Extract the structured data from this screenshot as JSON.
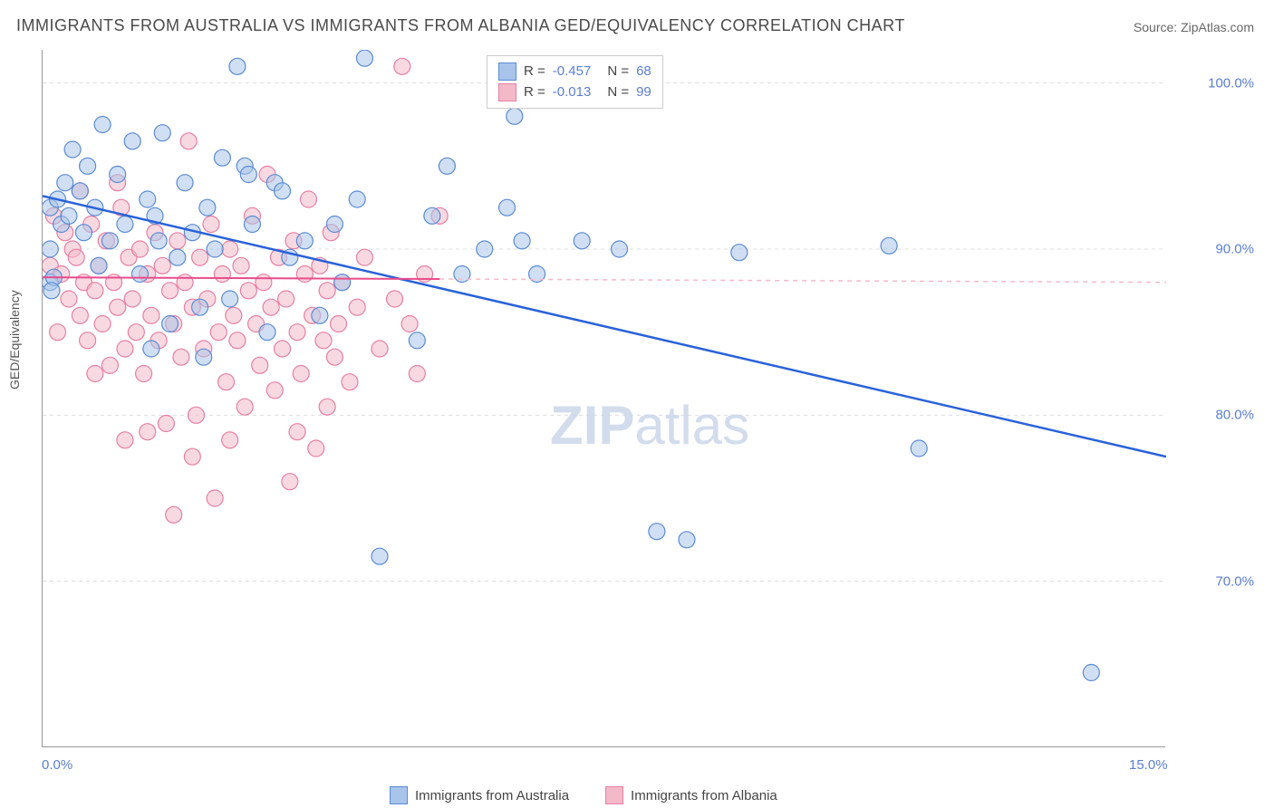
{
  "title": "IMMIGRANTS FROM AUSTRALIA VS IMMIGRANTS FROM ALBANIA GED/EQUIVALENCY CORRELATION CHART",
  "source_prefix": "Source: ",
  "source": "ZipAtlas.com",
  "ylabel": "GED/Equivalency",
  "watermark_bold": "ZIP",
  "watermark_light": "atlas",
  "chart": {
    "type": "scatter",
    "xlim": [
      0,
      15
    ],
    "ylim": [
      60,
      102
    ],
    "x_ticks": [
      0,
      2,
      4,
      6,
      8,
      10,
      12,
      14
    ],
    "x_tick_labels": {
      "0": "0.0%",
      "15": "15.0%"
    },
    "y_ticks": [
      70,
      80,
      90,
      100
    ],
    "y_tick_labels": [
      "70.0%",
      "80.0%",
      "90.0%",
      "100.0%"
    ],
    "grid_color": "#dddddd",
    "background_color": "#ffffff",
    "marker_radius": 9,
    "marker_opacity": 0.55,
    "series": [
      {
        "name": "Immigrants from Australia",
        "fill": "#a9c4ea",
        "stroke": "#5b8bd4",
        "R": "-0.457",
        "N": "68",
        "regression": {
          "x1": 0,
          "y1": 93.2,
          "x2": 15,
          "y2": 77.5,
          "color": "#2962d9",
          "width": 2.5,
          "dash_after_x": 15
        },
        "points": [
          [
            0.1,
            92.5
          ],
          [
            0.1,
            88.0
          ],
          [
            0.15,
            88.3
          ],
          [
            0.12,
            87.5
          ],
          [
            0.1,
            90.0
          ],
          [
            0.2,
            93.0
          ],
          [
            0.25,
            91.5
          ],
          [
            0.3,
            94.0
          ],
          [
            0.35,
            92.0
          ],
          [
            0.4,
            96.0
          ],
          [
            0.5,
            93.5
          ],
          [
            0.55,
            91.0
          ],
          [
            0.6,
            95.0
          ],
          [
            0.7,
            92.5
          ],
          [
            0.75,
            89.0
          ],
          [
            0.8,
            97.5
          ],
          [
            0.9,
            90.5
          ],
          [
            1.0,
            94.5
          ],
          [
            1.1,
            91.5
          ],
          [
            1.2,
            96.5
          ],
          [
            1.3,
            88.5
          ],
          [
            1.4,
            93.0
          ],
          [
            1.5,
            92.0
          ],
          [
            1.55,
            90.5
          ],
          [
            1.6,
            97.0
          ],
          [
            1.7,
            85.5
          ],
          [
            1.8,
            89.5
          ],
          [
            1.9,
            94.0
          ],
          [
            2.0,
            91.0
          ],
          [
            2.1,
            86.5
          ],
          [
            2.2,
            92.5
          ],
          [
            2.3,
            90.0
          ],
          [
            2.4,
            95.5
          ],
          [
            2.5,
            87.0
          ],
          [
            2.6,
            101.0
          ],
          [
            2.7,
            95.0
          ],
          [
            2.75,
            94.5
          ],
          [
            2.8,
            91.5
          ],
          [
            3.0,
            85.0
          ],
          [
            3.1,
            94.0
          ],
          [
            3.2,
            93.5
          ],
          [
            3.3,
            89.5
          ],
          [
            3.5,
            90.5
          ],
          [
            3.7,
            86.0
          ],
          [
            3.9,
            91.5
          ],
          [
            4.0,
            88.0
          ],
          [
            4.2,
            93.0
          ],
          [
            4.3,
            101.5
          ],
          [
            4.5,
            71.5
          ],
          [
            5.0,
            84.5
          ],
          [
            5.2,
            92.0
          ],
          [
            5.4,
            95.0
          ],
          [
            5.6,
            88.5
          ],
          [
            5.9,
            90.0
          ],
          [
            6.2,
            92.5
          ],
          [
            6.3,
            98.0
          ],
          [
            6.4,
            90.5
          ],
          [
            6.6,
            88.5
          ],
          [
            7.2,
            90.5
          ],
          [
            7.7,
            90.0
          ],
          [
            8.2,
            73.0
          ],
          [
            8.6,
            72.5
          ],
          [
            9.3,
            89.8
          ],
          [
            11.3,
            90.2
          ],
          [
            11.7,
            78.0
          ],
          [
            14.0,
            64.5
          ],
          [
            2.15,
            83.5
          ],
          [
            1.45,
            84.0
          ]
        ]
      },
      {
        "name": "Immigrants from Albania",
        "fill": "#f4b9c9",
        "stroke": "#e77fa3",
        "R": "-0.013",
        "N": "99",
        "regression": {
          "x1": 0,
          "y1": 88.3,
          "x2": 5.3,
          "y2": 88.2,
          "x2_dash": 15,
          "y2_dash": 88.0,
          "color": "#e94b8a",
          "width": 2,
          "dash_color": "#f4b9c9"
        },
        "points": [
          [
            0.1,
            89.0
          ],
          [
            0.15,
            92.0
          ],
          [
            0.2,
            85.0
          ],
          [
            0.25,
            88.5
          ],
          [
            0.3,
            91.0
          ],
          [
            0.35,
            87.0
          ],
          [
            0.4,
            90.0
          ],
          [
            0.45,
            89.5
          ],
          [
            0.5,
            86.0
          ],
          [
            0.55,
            88.0
          ],
          [
            0.6,
            84.5
          ],
          [
            0.65,
            91.5
          ],
          [
            0.7,
            87.5
          ],
          [
            0.75,
            89.0
          ],
          [
            0.8,
            85.5
          ],
          [
            0.85,
            90.5
          ],
          [
            0.9,
            83.0
          ],
          [
            0.95,
            88.0
          ],
          [
            1.0,
            86.5
          ],
          [
            1.05,
            92.5
          ],
          [
            1.1,
            84.0
          ],
          [
            1.15,
            89.5
          ],
          [
            1.2,
            87.0
          ],
          [
            1.25,
            85.0
          ],
          [
            1.3,
            90.0
          ],
          [
            1.35,
            82.5
          ],
          [
            1.4,
            88.5
          ],
          [
            1.45,
            86.0
          ],
          [
            1.5,
            91.0
          ],
          [
            1.55,
            84.5
          ],
          [
            1.6,
            89.0
          ],
          [
            1.65,
            79.5
          ],
          [
            1.7,
            87.5
          ],
          [
            1.75,
            85.5
          ],
          [
            1.8,
            90.5
          ],
          [
            1.85,
            83.5
          ],
          [
            1.9,
            88.0
          ],
          [
            1.95,
            96.5
          ],
          [
            2.0,
            86.5
          ],
          [
            2.05,
            80.0
          ],
          [
            2.1,
            89.5
          ],
          [
            2.15,
            84.0
          ],
          [
            2.2,
            87.0
          ],
          [
            2.25,
            91.5
          ],
          [
            2.3,
            75.0
          ],
          [
            2.35,
            85.0
          ],
          [
            2.4,
            88.5
          ],
          [
            2.45,
            82.0
          ],
          [
            2.5,
            90.0
          ],
          [
            2.55,
            86.0
          ],
          [
            2.6,
            84.5
          ],
          [
            2.65,
            89.0
          ],
          [
            2.7,
            80.5
          ],
          [
            2.75,
            87.5
          ],
          [
            2.8,
            92.0
          ],
          [
            2.85,
            85.5
          ],
          [
            2.9,
            83.0
          ],
          [
            2.95,
            88.0
          ],
          [
            3.0,
            94.5
          ],
          [
            3.05,
            86.5
          ],
          [
            3.1,
            81.5
          ],
          [
            3.15,
            89.5
          ],
          [
            3.2,
            84.0
          ],
          [
            3.25,
            87.0
          ],
          [
            3.3,
            76.0
          ],
          [
            3.35,
            90.5
          ],
          [
            3.4,
            85.0
          ],
          [
            3.45,
            82.5
          ],
          [
            3.5,
            88.5
          ],
          [
            3.55,
            93.0
          ],
          [
            3.6,
            86.0
          ],
          [
            3.65,
            78.0
          ],
          [
            3.7,
            89.0
          ],
          [
            3.75,
            84.5
          ],
          [
            3.8,
            87.5
          ],
          [
            3.85,
            91.0
          ],
          [
            3.9,
            83.5
          ],
          [
            3.95,
            85.5
          ],
          [
            4.0,
            88.0
          ],
          [
            4.1,
            82.0
          ],
          [
            4.2,
            86.5
          ],
          [
            4.3,
            89.5
          ],
          [
            4.5,
            84.0
          ],
          [
            4.7,
            87.0
          ],
          [
            4.8,
            101.0
          ],
          [
            4.9,
            85.5
          ],
          [
            5.0,
            82.5
          ],
          [
            5.1,
            88.5
          ],
          [
            5.3,
            92.0
          ],
          [
            1.75,
            74.0
          ],
          [
            2.0,
            77.5
          ],
          [
            1.4,
            79.0
          ],
          [
            1.1,
            78.5
          ],
          [
            0.7,
            82.5
          ],
          [
            3.4,
            79.0
          ],
          [
            3.8,
            80.5
          ],
          [
            2.5,
            78.5
          ],
          [
            1.0,
            94.0
          ],
          [
            0.5,
            93.5
          ]
        ]
      }
    ]
  },
  "legend": {
    "R_label": "R =",
    "N_label": "N ="
  }
}
